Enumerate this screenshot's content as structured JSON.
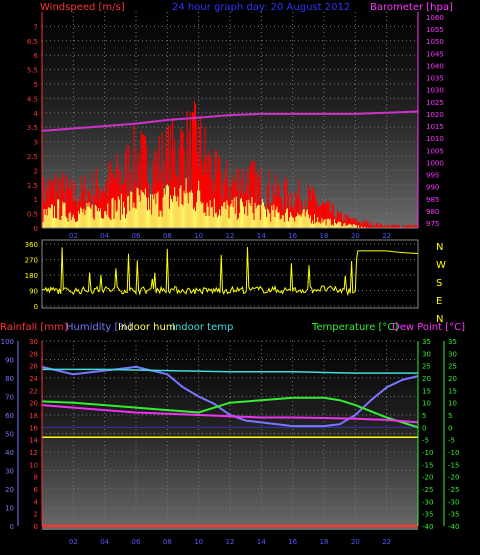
{
  "header": {
    "title": "24 hour graph day: 20 August 2012",
    "wind_label": "Windspeed [m/s]",
    "baro_label": "Barometer [hpa]"
  },
  "compass": {
    "letters": [
      "N",
      "W",
      "S",
      "E",
      "N"
    ]
  },
  "footer": {
    "rain_label": "Rainfall [mm]",
    "humidity_label": "Humidity [%]",
    "indoor_hum_label": "Indoor hum",
    "indoor_temp_label": "Indoor temp",
    "temp_label": "Temperature [°C]",
    "dew_label": "Dew Point [°C]"
  },
  "colors": {
    "wind": "#ff0000",
    "gust": "#ffff66",
    "baro": "#cc33cc",
    "direction": "#ffff00",
    "rain": "#ff3333",
    "humidity": "#7777ff",
    "indoor_hum": "#ffff00",
    "indoor_temp": "#44dddd",
    "temperature": "#33ee33",
    "dewpoint": "#ee33ee",
    "axis_left": "#ff3333",
    "axis_right": "#ff33ff",
    "grid": "#777777"
  },
  "chart_data": [
    {
      "type": "area",
      "name": "wind-baro",
      "x_ticks": [
        "02",
        "04",
        "06",
        "08",
        "10",
        "12",
        "14",
        "16",
        "18",
        "20",
        "22"
      ],
      "y_left_ticks": [
        "0",
        "0.5",
        "1",
        "1.5",
        "2",
        "2.5",
        "3",
        "3.5",
        "4",
        "4.5",
        "5",
        "5.5",
        "6",
        "6.5",
        "7"
      ],
      "y_right_ticks": [
        "975",
        "980",
        "985",
        "990",
        "995",
        "1000",
        "1005",
        "1010",
        "1015",
        "1020",
        "1025",
        "1030",
        "1035",
        "1040",
        "1045",
        "1050",
        "1055",
        "1060"
      ],
      "ylim_left": [
        0,
        7.5
      ],
      "ylim_right": [
        973,
        1062
      ],
      "xlim": [
        0,
        24
      ],
      "series": [
        {
          "name": "Windspeed",
          "x": [
            0,
            1,
            2,
            3,
            4,
            5,
            6,
            7,
            8,
            9,
            10,
            11,
            12,
            13,
            14,
            15,
            16,
            17,
            18,
            19,
            20,
            21,
            22,
            23,
            24
          ],
          "values": [
            1.5,
            1.8,
            1.4,
            1.6,
            1.9,
            2.2,
            3.0,
            2.6,
            3.0,
            3.4,
            3.6,
            2.2,
            1.9,
            2.1,
            1.8,
            1.5,
            1.4,
            1.3,
            0.9,
            0.5,
            0.3,
            0.2,
            0.1,
            0.1,
            0.1
          ]
        },
        {
          "name": "Gust",
          "x": [
            0,
            1,
            2,
            3,
            4,
            5,
            6,
            7,
            8,
            9,
            10,
            11,
            12,
            13,
            14,
            15,
            16,
            17,
            18,
            19,
            20,
            21,
            22,
            23,
            24
          ],
          "values": [
            0.5,
            0.8,
            0.6,
            0.7,
            0.9,
            0.9,
            1.2,
            1.0,
            1.3,
            1.4,
            1.4,
            0.9,
            0.8,
            0.9,
            0.8,
            0.6,
            0.6,
            0.5,
            0.3,
            0.2,
            0.1,
            0.0,
            0.0,
            0.0,
            0.0
          ]
        },
        {
          "name": "Barometer",
          "x": [
            0,
            2,
            4,
            6,
            8,
            10,
            12,
            14,
            16,
            18,
            20,
            22,
            24
          ],
          "values": [
            1013,
            1014,
            1015,
            1016,
            1017.5,
            1018.5,
            1019.5,
            1020,
            1020,
            1020,
            1020,
            1020.5,
            1021
          ]
        }
      ]
    },
    {
      "type": "line",
      "name": "wind-direction",
      "y_ticks": [
        "0",
        "90",
        "180",
        "270",
        "360"
      ],
      "ylim": [
        0,
        360
      ],
      "xlim": [
        0,
        24
      ],
      "series": [
        {
          "name": "Direction",
          "x": [
            0,
            2,
            4,
            6,
            8,
            10,
            12,
            14,
            16,
            18,
            19,
            20,
            20.1,
            22,
            23,
            24
          ],
          "values": [
            92,
            88,
            95,
            90,
            95,
            88,
            92,
            95,
            90,
            100,
            90,
            85,
            320,
            320,
            310,
            305
          ]
        }
      ]
    },
    {
      "type": "line",
      "name": "temp-hum",
      "x_ticks": [
        "02",
        "04",
        "06",
        "08",
        "10",
        "12",
        "14",
        "16",
        "18",
        "20",
        "22"
      ],
      "y_hum_ticks": [
        "0",
        "10",
        "20",
        "30",
        "40",
        "50",
        "60",
        "70",
        "80",
        "90",
        "100"
      ],
      "y_rain_ticks": [
        "0",
        "2",
        "4",
        "6",
        "8",
        "10",
        "12",
        "14",
        "16",
        "18",
        "20",
        "22",
        "24",
        "26",
        "28",
        "30"
      ],
      "y_temp_ticks": [
        "-40",
        "-35",
        "-30",
        "-25",
        "-20",
        "-15",
        "-10",
        "-5",
        "0",
        "5",
        "10",
        "15",
        "20",
        "25",
        "30",
        "35"
      ],
      "ylim_hum": [
        0,
        100
      ],
      "ylim_temp": [
        -40,
        35
      ],
      "xlim": [
        0,
        24
      ],
      "series": [
        {
          "name": "Humidity",
          "x": [
            0,
            1,
            2,
            4,
            6,
            8,
            9,
            10,
            11,
            12,
            13,
            14,
            16,
            18,
            19,
            20,
            21,
            22,
            23,
            24
          ],
          "values": [
            86,
            84,
            82,
            84,
            86,
            82,
            75,
            70,
            66,
            60,
            57,
            56,
            54,
            54,
            55,
            60,
            68,
            75,
            79,
            81
          ]
        },
        {
          "name": "Indoor hum",
          "x": [
            0,
            24
          ],
          "values": [
            48,
            48
          ]
        },
        {
          "name": "Indoor temp",
          "x": [
            0,
            4,
            8,
            12,
            16,
            20,
            24
          ],
          "values": [
            23.5,
            23.5,
            23,
            22.5,
            22.5,
            22,
            22
          ]
        },
        {
          "name": "Temperature",
          "x": [
            0,
            2,
            4,
            6,
            8,
            9,
            10,
            11,
            12,
            14,
            16,
            18,
            19,
            20,
            22,
            24
          ],
          "values": [
            10.5,
            10,
            9,
            8,
            7,
            6.5,
            6,
            8,
            10,
            11,
            12,
            12,
            11,
            9,
            4,
            0
          ]
        },
        {
          "name": "Dew Point",
          "x": [
            0,
            2,
            4,
            6,
            8,
            10,
            12,
            14,
            16,
            18,
            20,
            22,
            24
          ],
          "values": [
            9,
            8,
            7,
            6,
            5.5,
            5,
            4.5,
            4,
            4,
            3.8,
            3.5,
            3,
            2
          ]
        },
        {
          "name": "Rainfall",
          "x": [
            0,
            24
          ],
          "values": [
            0,
            0
          ]
        }
      ]
    }
  ]
}
